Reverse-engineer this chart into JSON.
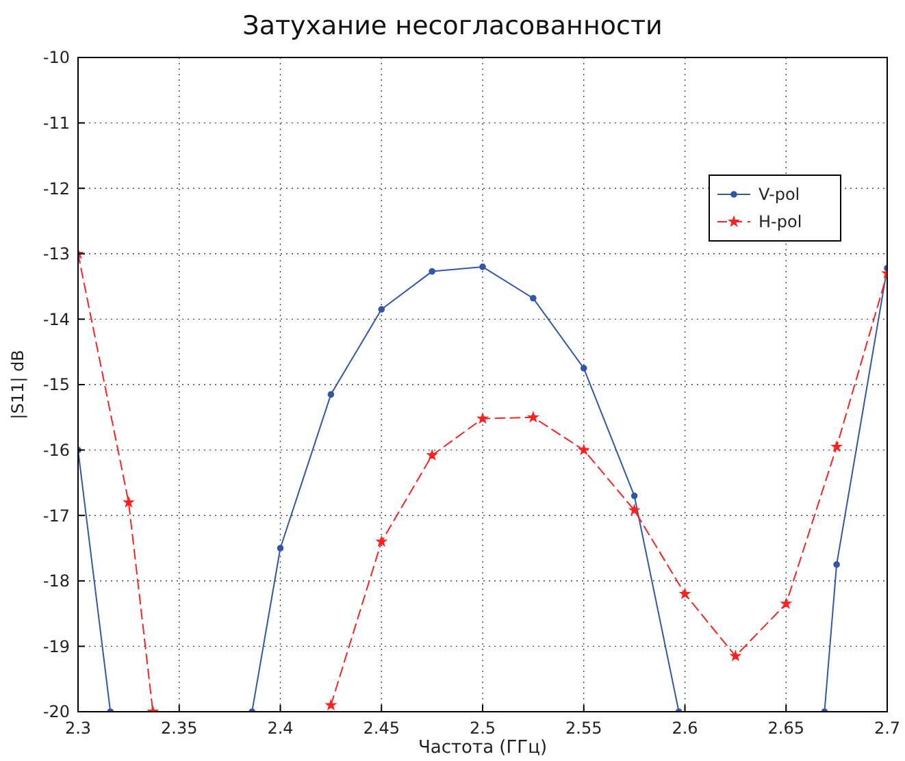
{
  "chart_data": {
    "type": "line",
    "title": "Затухание несогласованности",
    "xlabel": "Частота (ГГц)",
    "ylabel": "|S11| dB",
    "xlim": [
      2.3,
      2.7
    ],
    "xticks": [
      2.3,
      2.35,
      2.4,
      2.45,
      2.5,
      2.55,
      2.6,
      2.65,
      2.7
    ],
    "ylim": [
      -20,
      -10
    ],
    "yticks": [
      -20,
      -19,
      -18,
      -17,
      -16,
      -15,
      -14,
      -13,
      -12,
      -11,
      -10
    ],
    "grid": true,
    "legend": "top right",
    "series": [
      {
        "name": "V-pol",
        "color": "#3355aa",
        "marker": "circle",
        "line_style": "solid",
        "x": [
          2.3,
          2.316,
          2.35,
          2.386,
          2.4,
          2.425,
          2.45,
          2.475,
          2.5,
          2.525,
          2.55,
          2.575,
          2.597,
          2.64,
          2.669,
          2.675,
          2.7
        ],
        "values": [
          -16.0,
          -20,
          null,
          -20,
          -17.5,
          -15.15,
          -13.85,
          -13.27,
          -13.2,
          -13.68,
          -14.75,
          -16.7,
          -20,
          null,
          -20,
          -17.75,
          -13.22
        ]
      },
      {
        "name": "H-pol",
        "color": "#ff2020",
        "marker": "star",
        "line_style": "dashed",
        "x": [
          2.3,
          2.325,
          2.337,
          2.38,
          2.425,
          2.45,
          2.475,
          2.5,
          2.525,
          2.55,
          2.575,
          2.6,
          2.625,
          2.65,
          2.675,
          2.7
        ],
        "values": [
          -13.0,
          -16.8,
          -20,
          null,
          -19.9,
          -17.4,
          -16.08,
          -15.52,
          -15.5,
          -16.0,
          -16.92,
          -18.2,
          -19.15,
          -18.35,
          -15.95,
          -13.3
        ]
      }
    ]
  }
}
